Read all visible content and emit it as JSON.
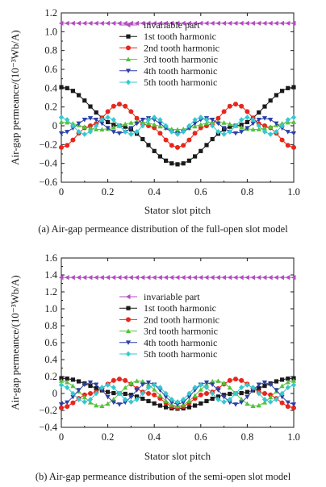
{
  "colors": {
    "invariable": "#b24fbf",
    "h1": "#1a1a1a",
    "h2": "#e8261c",
    "h3": "#56c13c",
    "h4": "#2b3fa8",
    "h5": "#37c8cf"
  },
  "chart_data": [
    {
      "type": "line",
      "caption": "(a)  Air-gap permeance distribution of the full-open slot model",
      "xlabel": "Stator slot pitch",
      "ylabel": "Air-gap permeance/(10⁻³Wb/A)",
      "xlim": [
        0,
        1.0
      ],
      "ylim": [
        -0.6,
        1.2
      ],
      "xticks": [
        "0",
        "0.2",
        "0.4",
        "0.6",
        "0.8",
        "1.0"
      ],
      "yticks": [
        "−0.6",
        "−0.4",
        "−0.2",
        "0",
        "0.2",
        "0.4",
        "0.6",
        "0.8",
        "1.0",
        "1.2"
      ],
      "ytick_values": [
        -0.6,
        -0.4,
        -0.2,
        0,
        0.2,
        0.4,
        0.6,
        0.8,
        1.0,
        1.2
      ],
      "xtick_values": [
        0,
        0.2,
        0.4,
        0.6,
        0.8,
        1.0
      ],
      "legend_position": "top-right",
      "series": [
        {
          "name": "invariable part",
          "marker": "triangle-left",
          "color_key": "invariable",
          "x": [
            0,
            1.0
          ],
          "y": [
            1.09,
            1.09
          ]
        },
        {
          "name": "1st tooth harmonic",
          "marker": "square",
          "color_key": "h1",
          "x": [
            0,
            0.25,
            0.5,
            0.75,
            1.0
          ],
          "y": [
            0.41,
            0.0,
            -0.41,
            0.0,
            0.41
          ]
        },
        {
          "name": "2nd tooth harmonic",
          "marker": "circle",
          "color_key": "h2",
          "x": [
            0,
            0.125,
            0.25,
            0.375,
            0.5,
            0.625,
            0.75,
            0.875,
            1.0
          ],
          "y": [
            -0.23,
            0.0,
            0.23,
            0.0,
            -0.23,
            0.0,
            0.23,
            0.0,
            -0.23
          ]
        },
        {
          "name": "3rd tooth harmonic",
          "marker": "triangle-up",
          "color_key": "h3",
          "x": [
            0,
            0.167,
            0.333,
            0.5,
            0.667,
            0.833,
            1.0
          ],
          "y": [
            0.04,
            -0.04,
            0.04,
            -0.04,
            0.04,
            -0.04,
            0.04
          ]
        },
        {
          "name": "4th tooth harmonic",
          "marker": "triangle-down",
          "color_key": "h4",
          "x": [
            0,
            0.125,
            0.25,
            0.375,
            0.5,
            0.625,
            0.75,
            0.875,
            1.0
          ],
          "y": [
            -0.08,
            0.08,
            -0.08,
            0.08,
            -0.08,
            0.08,
            -0.08,
            0.08,
            -0.08
          ]
        },
        {
          "name": "5th tooth harmonic",
          "marker": "diamond",
          "color_key": "h5",
          "x": [
            0,
            0.1,
            0.2,
            0.3,
            0.4,
            0.5,
            0.6,
            0.7,
            0.8,
            0.9,
            1.0
          ],
          "y": [
            0.09,
            -0.09,
            0.09,
            -0.09,
            0.09,
            -0.09,
            0.09,
            -0.09,
            0.09,
            -0.09,
            0.09
          ]
        }
      ]
    },
    {
      "type": "line",
      "caption": "(b)  Air-gap permeance distribution of the semi-open slot model",
      "xlabel": "Stator slot pitch",
      "ylabel": "Air-gap permeance/(10⁻³Wb/A)",
      "xlim": [
        0,
        1.0
      ],
      "ylim": [
        -0.4,
        1.6
      ],
      "xticks": [
        "0",
        "0.2",
        "0.4",
        "0.6",
        "0.8",
        "1.0"
      ],
      "yticks": [
        "−0.4",
        "−0.2",
        "0",
        "0.2",
        "0.4",
        "0.6",
        "0.8",
        "1.0",
        "1.2",
        "1.4",
        "1.6"
      ],
      "ytick_values": [
        -0.4,
        -0.2,
        0,
        0.2,
        0.4,
        0.6,
        0.8,
        1.0,
        1.2,
        1.4,
        1.6
      ],
      "xtick_values": [
        0,
        0.2,
        0.4,
        0.6,
        0.8,
        1.0
      ],
      "legend_position": "top-right",
      "series": [
        {
          "name": "invariable part",
          "marker": "triangle-left",
          "color_key": "invariable",
          "x": [
            0,
            1.0
          ],
          "y": [
            1.37,
            1.37
          ]
        },
        {
          "name": "1st tooth harmonic",
          "marker": "square",
          "color_key": "h1",
          "x": [
            0,
            0.25,
            0.5,
            0.75,
            1.0
          ],
          "y": [
            0.18,
            0.0,
            -0.18,
            0.0,
            0.18
          ]
        },
        {
          "name": "2nd tooth harmonic",
          "marker": "circle",
          "color_key": "h2",
          "x": [
            0,
            0.125,
            0.25,
            0.375,
            0.5,
            0.625,
            0.75,
            0.875,
            1.0
          ],
          "y": [
            -0.17,
            0.0,
            0.17,
            0.0,
            -0.17,
            0.0,
            0.17,
            0.0,
            -0.17
          ]
        },
        {
          "name": "3rd tooth harmonic",
          "marker": "triangle-up",
          "color_key": "h3",
          "x": [
            0,
            0.167,
            0.333,
            0.5,
            0.667,
            0.833,
            1.0
          ],
          "y": [
            0.15,
            -0.15,
            0.15,
            -0.15,
            0.15,
            -0.15,
            0.15
          ]
        },
        {
          "name": "4th tooth harmonic",
          "marker": "triangle-down",
          "color_key": "h4",
          "x": [
            0,
            0.125,
            0.25,
            0.375,
            0.5,
            0.625,
            0.75,
            0.875,
            1.0
          ],
          "y": [
            -0.13,
            0.13,
            -0.13,
            0.13,
            -0.13,
            0.13,
            -0.13,
            0.13,
            -0.13
          ]
        },
        {
          "name": "5th tooth harmonic",
          "marker": "diamond",
          "color_key": "h5",
          "x": [
            0,
            0.1,
            0.2,
            0.3,
            0.4,
            0.5,
            0.6,
            0.7,
            0.8,
            0.9,
            1.0
          ],
          "y": [
            0.1,
            -0.1,
            0.1,
            -0.1,
            0.1,
            -0.1,
            0.1,
            -0.1,
            0.1,
            -0.1,
            0.1
          ]
        }
      ]
    }
  ]
}
